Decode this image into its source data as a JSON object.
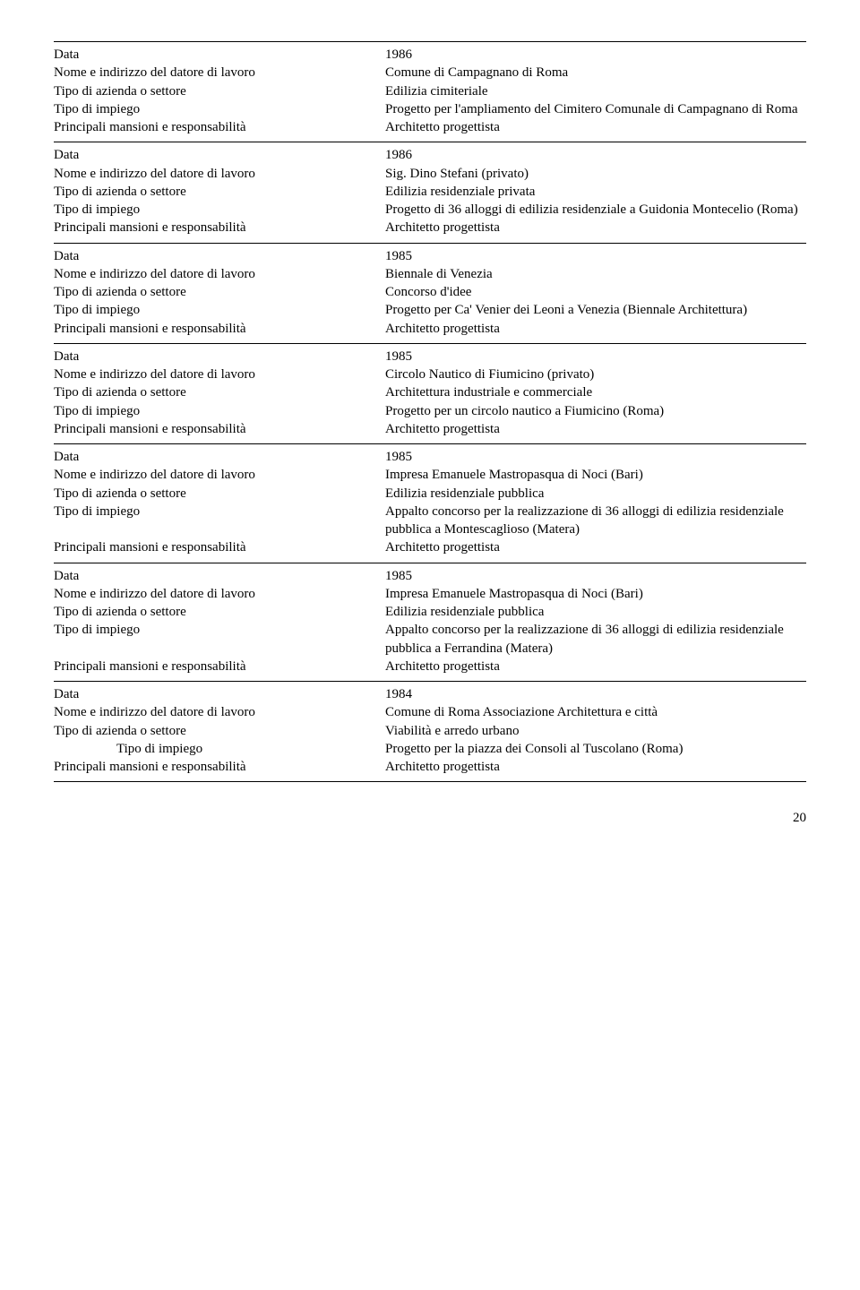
{
  "labels": {
    "data": "Data",
    "nome": "Nome e indirizzo del datore di lavoro",
    "azienda": "Tipo di azienda o settore",
    "impiego": "Tipo di impiego",
    "mansioni": "Principali mansioni e responsabilità"
  },
  "entries": [
    {
      "data": "1986",
      "nome": "Comune di Campagnano di Roma",
      "azienda": "Edilizia cimiteriale",
      "impiego": "Progetto per l'ampliamento del Cimitero Comunale di Campagnano di Roma",
      "mansioni": "Architetto progettista"
    },
    {
      "data": "1986",
      "nome": "Sig. Dino Stefani (privato)",
      "azienda": "Edilizia residenziale privata",
      "impiego": "Progetto di 36 alloggi di edilizia residenziale a Guidonia Montecelio (Roma)",
      "mansioni": "Architetto progettista"
    },
    {
      "data": "1985",
      "nome": "Biennale di Venezia",
      "azienda": "Concorso d'idee",
      "impiego": "Progetto per Ca' Venier dei Leoni a Venezia (Biennale Architettura)",
      "mansioni": "Architetto progettista"
    },
    {
      "data": "1985",
      "nome": "Circolo Nautico di Fiumicino (privato)",
      "azienda": "Architettura industriale e commerciale",
      "impiego": "Progetto per un circolo nautico a Fiumicino (Roma)",
      "mansioni": "Architetto progettista"
    },
    {
      "data": "1985",
      "nome": "Impresa Emanuele Mastropasqua di Noci (Bari)",
      "azienda": "Edilizia residenziale pubblica",
      "impiego": "Appalto concorso per la realizzazione di 36 alloggi di edilizia residenziale pubblica a Montescaglioso (Matera)",
      "mansioni": "Architetto progettista"
    },
    {
      "data": "1985",
      "nome": "Impresa Emanuele Mastropasqua di Noci (Bari)",
      "azienda": "Edilizia residenziale pubblica",
      "impiego": "Appalto concorso per la realizzazione di 36 alloggi di edilizia residenziale pubblica a Ferrandina (Matera)",
      "mansioni": "Architetto progettista"
    },
    {
      "data": "1984",
      "nome": "Comune di Roma Associazione Architettura e città",
      "azienda": "Viabilità e arredo urbano",
      "impiego": "Progetto per la piazza dei Consoli al Tuscolano (Roma)",
      "impiego_indent": true,
      "mansioni": "Architetto progettista"
    }
  ],
  "pagenum": "20"
}
